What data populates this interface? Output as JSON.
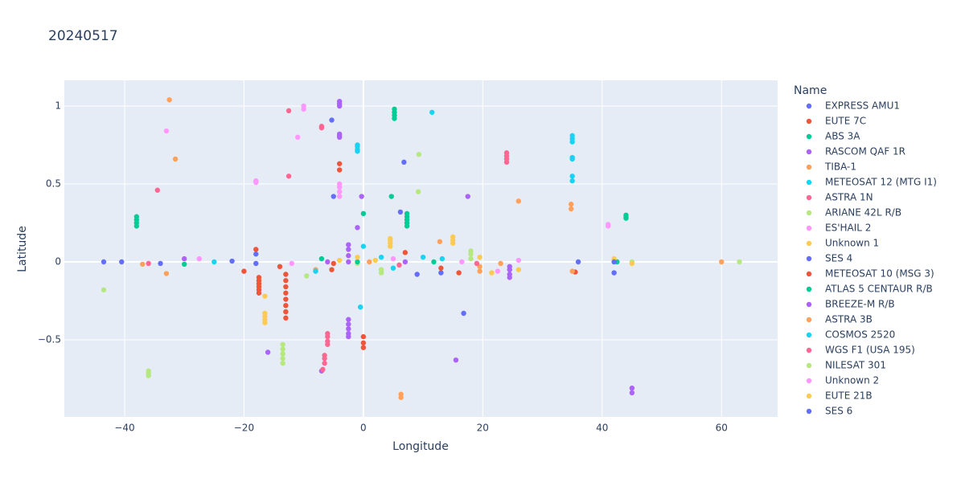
{
  "chart_data": {
    "type": "scatter",
    "title": "20240517",
    "x_label": "Longitude",
    "y_label": "Latitude",
    "legend_title": "Name",
    "xlim": [
      -50.1,
      69.4
    ],
    "ylim": [
      -0.995,
      1.165
    ],
    "xticks": [
      {
        "value": -40,
        "label": "−40"
      },
      {
        "value": -20,
        "label": "−20"
      },
      0,
      20,
      40,
      60
    ],
    "yticks": [
      {
        "value": -0.5,
        "label": "−0.5"
      },
      0,
      0.5,
      1
    ],
    "grid": true,
    "legend_position": "right",
    "series": [
      {
        "name": "EXPRESS AMU1",
        "color": "#636efa",
        "x": [
          -43.5,
          -40.5,
          -34,
          -22,
          -18,
          -18
        ],
        "values": [
          0,
          0,
          -0.01,
          0.005,
          -0.01,
          0.05
        ]
      },
      {
        "name": "EUTE 7C",
        "color": "#EF553B",
        "x": [
          -20,
          -18,
          -17.5,
          -17.5,
          -17.5,
          -17.5,
          -17.5,
          -17.5,
          -14,
          -5.3,
          -5
        ],
        "values": [
          -0.06,
          0.08,
          -0.1,
          -0.12,
          -0.14,
          -0.16,
          -0.18,
          -0.2,
          -0.03,
          -0.05,
          -0.01
        ]
      },
      {
        "name": "ABS 3A",
        "color": "#00cc96",
        "x": [
          -38,
          -38,
          -38,
          -38,
          -30,
          -7,
          5.2,
          5.2,
          5.2,
          5.2,
          4.7
        ],
        "values": [
          0.23,
          0.25,
          0.27,
          0.29,
          -0.015,
          0.02,
          0.92,
          0.94,
          0.96,
          0.98,
          0.42
        ]
      },
      {
        "name": "RASCOM QAF 1R",
        "color": "#ab63fa",
        "x": [
          -30,
          -16,
          -7,
          -4,
          -4,
          -4,
          -4,
          -4,
          -4,
          -1,
          -0.3,
          -6
        ],
        "values": [
          0.02,
          -0.58,
          -0.7,
          1.0,
          1.015,
          1.03,
          0.8,
          0.81,
          0.82,
          0.22,
          0.42,
          0
        ]
      },
      {
        "name": "TIBA-1",
        "color": "#FFA15A",
        "x": [
          -32.5,
          -31.5,
          -37,
          -33,
          -8,
          1,
          6.3,
          6.3
        ],
        "values": [
          1.04,
          0.66,
          -0.015,
          -0.075,
          -0.05,
          0,
          -0.85,
          -0.87
        ]
      },
      {
        "name": "METEOSAT 12 (MTG I1)",
        "color": "#19d3f3",
        "x": [
          -25,
          -8,
          -1,
          -1,
          -1,
          -1,
          0,
          -0.5,
          3
        ],
        "values": [
          0,
          -0.06,
          0.71,
          0.72,
          0.74,
          0.75,
          0.1,
          -0.29,
          0.03
        ]
      },
      {
        "name": "ASTRA 1N",
        "color": "#FF6692",
        "x": [
          -34.5,
          -36,
          -12.5,
          -12.5,
          -7,
          -7,
          24,
          24,
          24,
          24
        ],
        "values": [
          0.46,
          -0.01,
          0.55,
          0.97,
          0.86,
          0.87,
          0.64,
          0.66,
          0.68,
          0.7
        ]
      },
      {
        "name": "ARIANE 42L R/B",
        "color": "#B6E880",
        "x": [
          -43.5,
          -36,
          -36,
          -36,
          -9.5,
          -1,
          3,
          3
        ],
        "values": [
          -0.18,
          -0.7,
          -0.715,
          -0.73,
          -0.09,
          -0.01,
          -0.05,
          -0.07
        ]
      },
      {
        "name": "ES'HAIL 2",
        "color": "#FF97FF",
        "x": [
          -33,
          -27.5,
          -18,
          -18,
          -12,
          -11,
          -10,
          -10
        ],
        "values": [
          0.84,
          0.02,
          0.51,
          0.52,
          -0.01,
          0.8,
          0.98,
          1.0
        ]
      },
      {
        "name": "Unknown 1",
        "color": "#FECB52",
        "x": [
          -16.5,
          -16.5,
          -16.5,
          -16.5,
          -16.5,
          4.5,
          4.5,
          4.5,
          4.5,
          2
        ],
        "values": [
          -0.22,
          -0.33,
          -0.35,
          -0.37,
          -0.39,
          0.1,
          0.12,
          0.14,
          0.15,
          0.01
        ]
      },
      {
        "name": "SES 4",
        "color": "#636efa",
        "x": [
          -5.3,
          -5,
          6.2,
          6.8,
          9,
          13
        ],
        "values": [
          0.91,
          0.42,
          0.32,
          0.64,
          -0.08,
          -0.07
        ]
      },
      {
        "name": "METEOSAT 10 (MSG 3)",
        "color": "#EF553B",
        "x": [
          -13,
          -13,
          -13,
          -13,
          -13,
          -13,
          -13,
          -13,
          -4,
          -4,
          0,
          0,
          0,
          7,
          13,
          16,
          35.5
        ],
        "values": [
          -0.08,
          -0.12,
          -0.16,
          -0.2,
          -0.24,
          -0.28,
          -0.32,
          -0.36,
          0.63,
          0.59,
          -0.48,
          -0.52,
          -0.55,
          0.06,
          -0.04,
          -0.07,
          -0.065
        ]
      },
      {
        "name": "ATLAS 5 CENTAUR R/B",
        "color": "#00cc96",
        "x": [
          -1,
          0,
          7.3,
          7.3,
          7.3,
          7.3,
          7.3,
          11.8,
          44,
          44,
          44,
          42.5
        ],
        "values": [
          0,
          0.31,
          0.23,
          0.25,
          0.27,
          0.29,
          0.31,
          0,
          0.28,
          0.29,
          0.3,
          0
        ]
      },
      {
        "name": "BREEZE-M R/B",
        "color": "#ab63fa",
        "x": [
          -2.5,
          -2.5,
          -2.5,
          -2.5,
          -2.5,
          -2.5,
          -2.5,
          -2.5,
          -2.5,
          7,
          15.5,
          17.5,
          24.5,
          24.5,
          24.5,
          24.5,
          45,
          45
        ],
        "values": [
          -0.37,
          -0.4,
          -0.43,
          -0.46,
          -0.48,
          0,
          0.04,
          0.08,
          0.11,
          0,
          -0.63,
          0.42,
          -0.03,
          -0.05,
          -0.08,
          -0.1,
          -0.81,
          -0.84
        ]
      },
      {
        "name": "ASTRA 3B",
        "color": "#FFA15A",
        "x": [
          12.8,
          19.5,
          19.5,
          23,
          34.8,
          34.8,
          26,
          35,
          60
        ],
        "values": [
          0.13,
          -0.06,
          -0.03,
          -0.01,
          0.34,
          0.37,
          0.39,
          -0.06,
          0
        ]
      },
      {
        "name": "COSMOS 2520",
        "color": "#19d3f3",
        "x": [
          5,
          10,
          11.5,
          13.2,
          35,
          35,
          35,
          35,
          35,
          35,
          35
        ],
        "values": [
          -0.04,
          0.03,
          0.96,
          0.02,
          0.52,
          0.55,
          0.66,
          0.67,
          0.77,
          0.79,
          0.81
        ]
      },
      {
        "name": "WGS F1 (USA 195)",
        "color": "#FF6692",
        "x": [
          -6.5,
          -6.5,
          -6.5,
          -6,
          -6,
          -6,
          -6,
          -6.8,
          6,
          19
        ],
        "values": [
          -0.6,
          -0.62,
          -0.65,
          -0.46,
          -0.48,
          -0.51,
          -0.53,
          -0.69,
          -0.02,
          -0.01
        ]
      },
      {
        "name": "NILESAT 301",
        "color": "#B6E880",
        "x": [
          -13.5,
          -13.5,
          -13.5,
          -13.5,
          -13.5,
          9.2,
          9.3,
          18,
          18,
          18,
          45,
          63
        ],
        "values": [
          -0.53,
          -0.56,
          -0.59,
          -0.62,
          -0.65,
          0.45,
          0.69,
          0.02,
          0.05,
          0.07,
          0,
          0
        ]
      },
      {
        "name": "Unknown 2",
        "color": "#FF97FF",
        "x": [
          -4,
          -4,
          -4,
          -4,
          5,
          16.5,
          22.5,
          26,
          41,
          41
        ],
        "values": [
          0.42,
          0.45,
          0.48,
          0.5,
          0.02,
          0,
          -0.06,
          0.01,
          0.23,
          0.24
        ]
      },
      {
        "name": "EUTE 21B",
        "color": "#FECB52",
        "x": [
          15,
          15,
          15,
          21.5,
          19.5,
          42,
          45,
          26,
          -4,
          -1
        ],
        "values": [
          0.12,
          0.14,
          0.16,
          -0.07,
          0.03,
          0.02,
          -0.01,
          -0.05,
          0.01,
          0.03
        ]
      },
      {
        "name": "SES 6",
        "color": "#636efa",
        "x": [
          16.8,
          36,
          42,
          42
        ],
        "values": [
          -0.33,
          0,
          -0.07,
          0
        ]
      }
    ]
  }
}
